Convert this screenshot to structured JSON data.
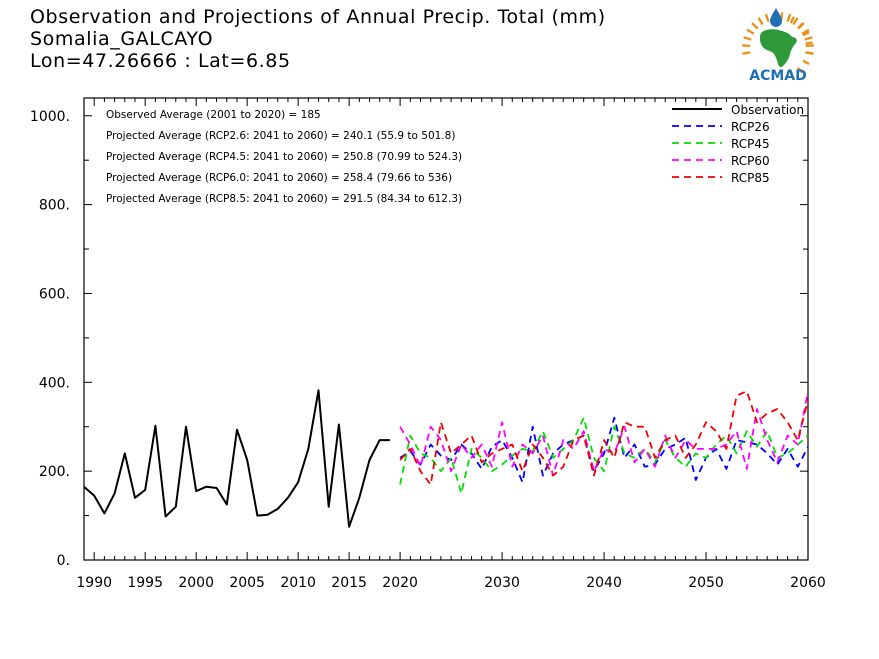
{
  "title": {
    "line1": "Observation and Projections of Annual Precip. Total (mm)",
    "line2": "Somalia_GALCAYO",
    "line3": "Lon=47.26666 : Lat=6.85"
  },
  "logo": {
    "text": "ACMAD"
  },
  "colors": {
    "observation": "#000000",
    "rcp26": "#0000ff",
    "rcp45": "#00dd00",
    "rcp60": "#ff00ff",
    "rcp85": "#ee0000",
    "logo_blue": "#1f6fb5",
    "logo_green": "#2e9a3a",
    "logo_orange": "#e8941c"
  },
  "chart_data": {
    "type": "line",
    "xlim": [
      1989,
      2060
    ],
    "ylim": [
      0,
      1040
    ],
    "x_ticks": [
      1990,
      1995,
      2000,
      2005,
      2010,
      2015,
      2020,
      2030,
      2040,
      2050,
      2060
    ],
    "y_ticks": [
      0,
      200,
      400,
      600,
      800,
      1000
    ],
    "y_tick_labels": [
      "0.",
      "200.",
      "400.",
      "600.",
      "800.",
      "1000."
    ],
    "annotations": [
      "Observed Average (2001 to 2020) = 185",
      "Projected Average (RCP2.6: 2041 to 2060) = 240.1 (55.9 to 501.8)",
      "Projected Average (RCP4.5: 2041 to 2060) = 250.8 (70.99 to 524.3)",
      "Projected Average (RCP6.0: 2041 to 2060) = 258.4 (79.66 to 536)",
      "Projected Average (RCP8.5: 2041 to 2060) = 291.5 (84.34 to 612.3)"
    ],
    "legend_position": "top-right",
    "series": [
      {
        "name": "Observation",
        "style": "solid",
        "x": [
          1989,
          1990,
          1991,
          1992,
          1993,
          1994,
          1995,
          1996,
          1997,
          1998,
          1999,
          2000,
          2001,
          2002,
          2003,
          2004,
          2005,
          2006,
          2007,
          2008,
          2009,
          2010,
          2011,
          2012,
          2013,
          2014,
          2015,
          2016,
          2017,
          2018,
          2019
        ],
        "values": [
          165,
          145,
          105,
          150,
          240,
          140,
          158,
          302,
          98,
          120,
          300,
          155,
          165,
          162,
          125,
          293,
          225,
          100,
          102,
          115,
          140,
          175,
          250,
          382,
          120,
          305,
          75,
          140,
          225,
          270,
          270
        ]
      },
      {
        "name": "RCP26",
        "style": "dashed",
        "x": [
          2020,
          2021,
          2022,
          2023,
          2024,
          2025,
          2026,
          2027,
          2028,
          2029,
          2030,
          2031,
          2032,
          2033,
          2034,
          2035,
          2036,
          2037,
          2038,
          2039,
          2040,
          2041,
          2042,
          2043,
          2044,
          2045,
          2046,
          2047,
          2048,
          2049,
          2050,
          2051,
          2052,
          2053,
          2054,
          2055,
          2056,
          2057,
          2058,
          2059,
          2060
        ],
        "values": [
          230,
          245,
          215,
          260,
          235,
          225,
          260,
          240,
          205,
          255,
          270,
          230,
          175,
          300,
          190,
          240,
          260,
          270,
          280,
          200,
          240,
          320,
          230,
          260,
          210,
          215,
          250,
          260,
          275,
          180,
          230,
          250,
          205,
          270,
          265,
          260,
          240,
          215,
          250,
          210,
          255
        ]
      },
      {
        "name": "RCP45",
        "style": "dashed",
        "x": [
          2020,
          2021,
          2022,
          2023,
          2024,
          2025,
          2026,
          2027,
          2028,
          2029,
          2030,
          2031,
          2032,
          2033,
          2034,
          2035,
          2036,
          2037,
          2038,
          2039,
          2040,
          2041,
          2042,
          2043,
          2044,
          2045,
          2046,
          2047,
          2048,
          2049,
          2050,
          2051,
          2052,
          2053,
          2054,
          2055,
          2056,
          2057,
          2058,
          2059,
          2060
        ],
        "values": [
          170,
          280,
          240,
          230,
          200,
          230,
          150,
          250,
          230,
          200,
          215,
          235,
          250,
          245,
          290,
          230,
          250,
          270,
          320,
          230,
          200,
          300,
          240,
          230,
          250,
          220,
          270,
          230,
          210,
          240,
          230,
          260,
          280,
          240,
          290,
          255,
          290,
          230,
          240,
          260,
          280
        ]
      },
      {
        "name": "RCP60",
        "style": "dashed",
        "x": [
          2020,
          2021,
          2022,
          2023,
          2024,
          2025,
          2026,
          2027,
          2028,
          2029,
          2030,
          2031,
          2032,
          2033,
          2034,
          2035,
          2036,
          2037,
          2038,
          2039,
          2040,
          2041,
          2042,
          2043,
          2044,
          2045,
          2046,
          2047,
          2048,
          2049,
          2050,
          2051,
          2052,
          2053,
          2054,
          2055,
          2056,
          2057,
          2058,
          2059,
          2060
        ],
        "values": [
          300,
          260,
          210,
          300,
          270,
          200,
          260,
          230,
          260,
          210,
          310,
          210,
          260,
          240,
          280,
          190,
          270,
          250,
          290,
          200,
          250,
          240,
          300,
          220,
          250,
          210,
          280,
          230,
          270,
          250,
          250,
          250,
          260,
          290,
          205,
          340,
          270,
          220,
          280,
          260,
          380
        ]
      },
      {
        "name": "RCP85",
        "style": "dashed",
        "x": [
          2020,
          2021,
          2022,
          2023,
          2024,
          2025,
          2026,
          2027,
          2028,
          2029,
          2030,
          2031,
          2032,
          2033,
          2034,
          2035,
          2036,
          2037,
          2038,
          2039,
          2040,
          2041,
          2042,
          2043,
          2044,
          2045,
          2046,
          2047,
          2048,
          2049,
          2050,
          2051,
          2052,
          2053,
          2054,
          2055,
          2056,
          2057,
          2058,
          2059,
          2060
        ],
        "values": [
          225,
          250,
          200,
          170,
          310,
          240,
          260,
          280,
          220,
          240,
          250,
          260,
          200,
          260,
          230,
          190,
          210,
          270,
          280,
          190,
          270,
          230,
          310,
          300,
          300,
          230,
          270,
          280,
          230,
          260,
          310,
          290,
          250,
          370,
          380,
          310,
          330,
          340,
          310,
          270,
          360
        ]
      }
    ]
  }
}
